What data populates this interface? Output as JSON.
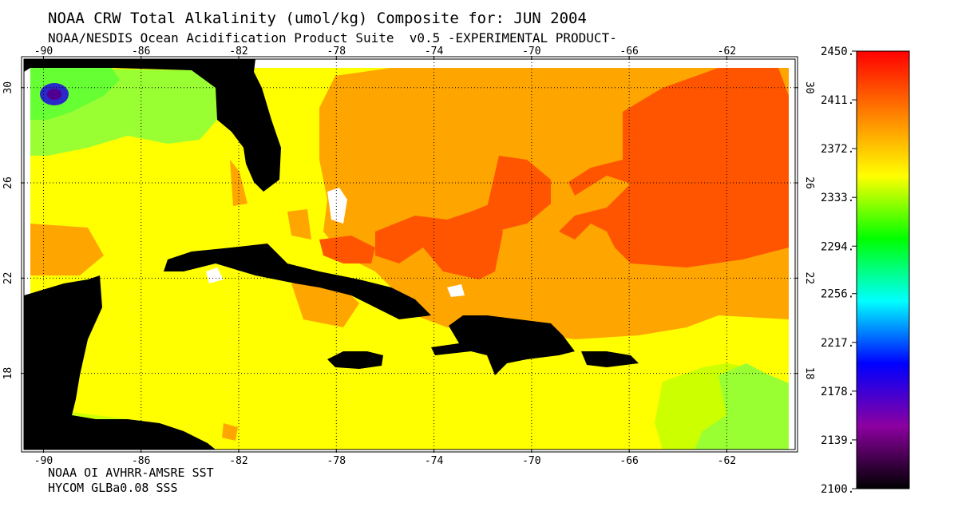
{
  "header": {
    "title": "NOAA CRW Total Alkalinity (umol/kg) Composite for: JUN 2004",
    "subtitle": "NOAA/NESDIS Ocean Acidification Product Suite  v0.5 -EXPERIMENTAL PRODUCT-"
  },
  "footer": {
    "line1": "NOAA OI AVHRR-AMSRE SST",
    "line2": "HYCOM GLBa0.08 SSS"
  },
  "map": {
    "lon_min": -90.8,
    "lon_max": -59.2,
    "lat_min": 14.8,
    "lat_max": 31.2,
    "lon_ticks": [
      {
        "value": -90,
        "label": "-90"
      },
      {
        "value": -86,
        "label": "-86"
      },
      {
        "value": -82,
        "label": "-82"
      },
      {
        "value": -78,
        "label": "-78"
      },
      {
        "value": -74,
        "label": "-74"
      },
      {
        "value": -70,
        "label": "-70"
      },
      {
        "value": -66,
        "label": "-66"
      },
      {
        "value": -62,
        "label": "-62"
      }
    ],
    "lat_ticks": [
      {
        "value": 30,
        "label": "30"
      },
      {
        "value": 26,
        "label": "26"
      },
      {
        "value": 22,
        "label": "22"
      },
      {
        "value": 18,
        "label": "18"
      }
    ],
    "colors": {
      "land": "#000000",
      "yellow": "#ffff00",
      "yellow_green": "#ccff00",
      "light_green": "#99ff33",
      "green": "#66ff33",
      "orange": "#ffa500",
      "dark_orange": "#ff6a00",
      "red_orange": "#ff5500",
      "blue": "#2a28c8",
      "purple": "#500090"
    }
  },
  "colorbar": {
    "min": 2100,
    "max": 2450,
    "ticks": [
      {
        "value": 2450,
        "label": "2450."
      },
      {
        "value": 2411,
        "label": "2411."
      },
      {
        "value": 2372,
        "label": "2372."
      },
      {
        "value": 2333,
        "label": "2333."
      },
      {
        "value": 2294,
        "label": "2294."
      },
      {
        "value": 2256,
        "label": "2256."
      },
      {
        "value": 2217,
        "label": "2217."
      },
      {
        "value": 2178,
        "label": "2178."
      },
      {
        "value": 2139,
        "label": "2139."
      },
      {
        "value": 2100,
        "label": "2100."
      }
    ],
    "stops": [
      "#000000",
      "#8c00a0",
      "#0000ff",
      "#00ffff",
      "#00ff00",
      "#ffff00",
      "#ff8000",
      "#ff0000"
    ]
  }
}
